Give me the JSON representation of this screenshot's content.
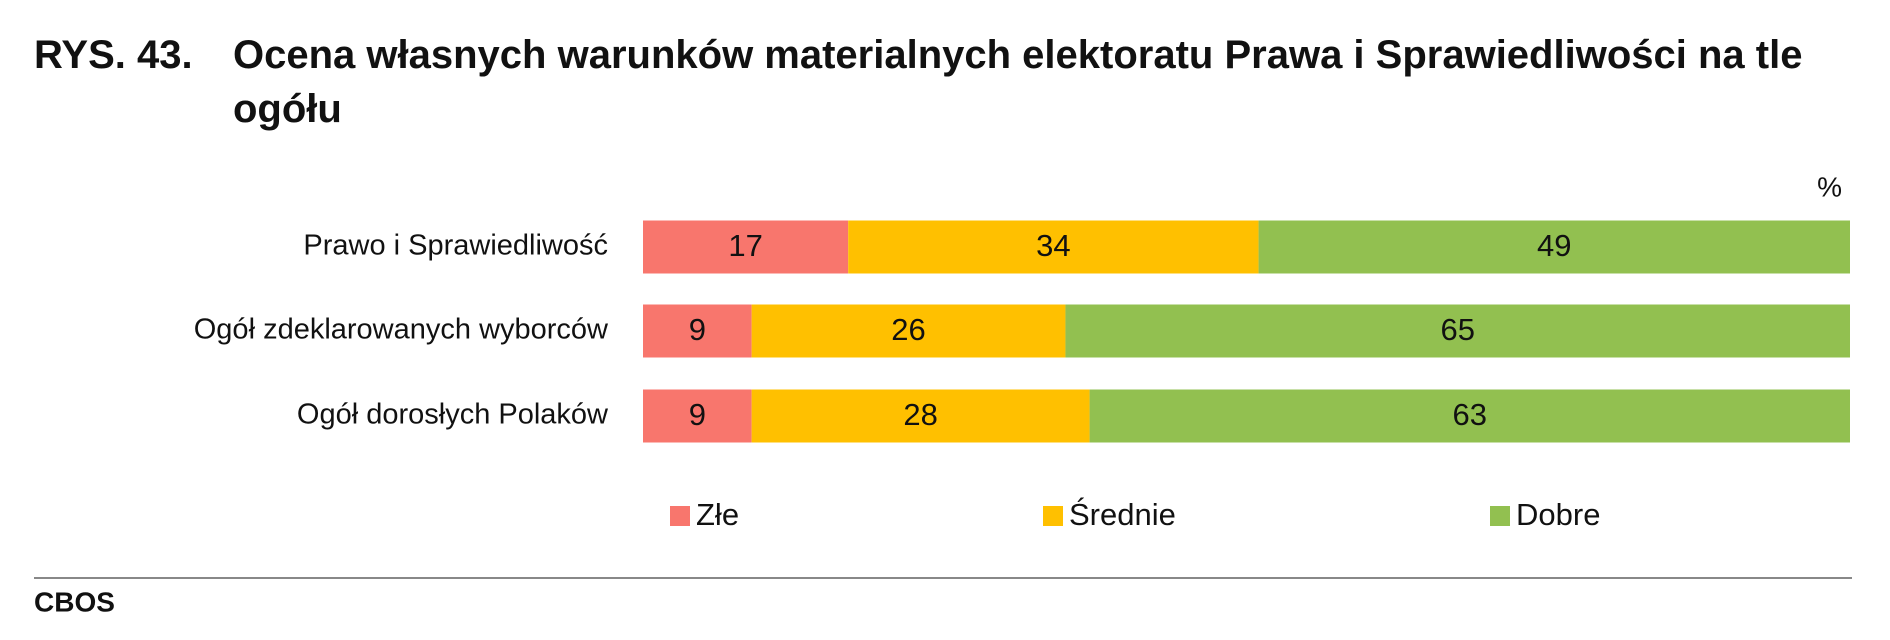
{
  "chart_data": {
    "type": "stacked-bar-horizontal",
    "figure_label": "RYS. 43.",
    "title": "Ocena własnych warunków materialnych elektoratu Prawa i Sprawiedliwości na tle ogółu",
    "unit": "%",
    "categories": [
      "Prawo i Sprawiedliwość",
      "Ogół zdeklarowanych wyborców",
      "Ogół dorosłych Polaków"
    ],
    "series": [
      {
        "name": "Złe",
        "color": "#f8766d",
        "values": [
          17,
          9,
          9
        ]
      },
      {
        "name": "Średnie",
        "color": "#ffc000",
        "values": [
          34,
          26,
          28
        ]
      },
      {
        "name": "Dobre",
        "color": "#92c050",
        "values": [
          49,
          65,
          63
        ]
      }
    ],
    "xlim": [
      0,
      100
    ],
    "source": "CBOS"
  }
}
